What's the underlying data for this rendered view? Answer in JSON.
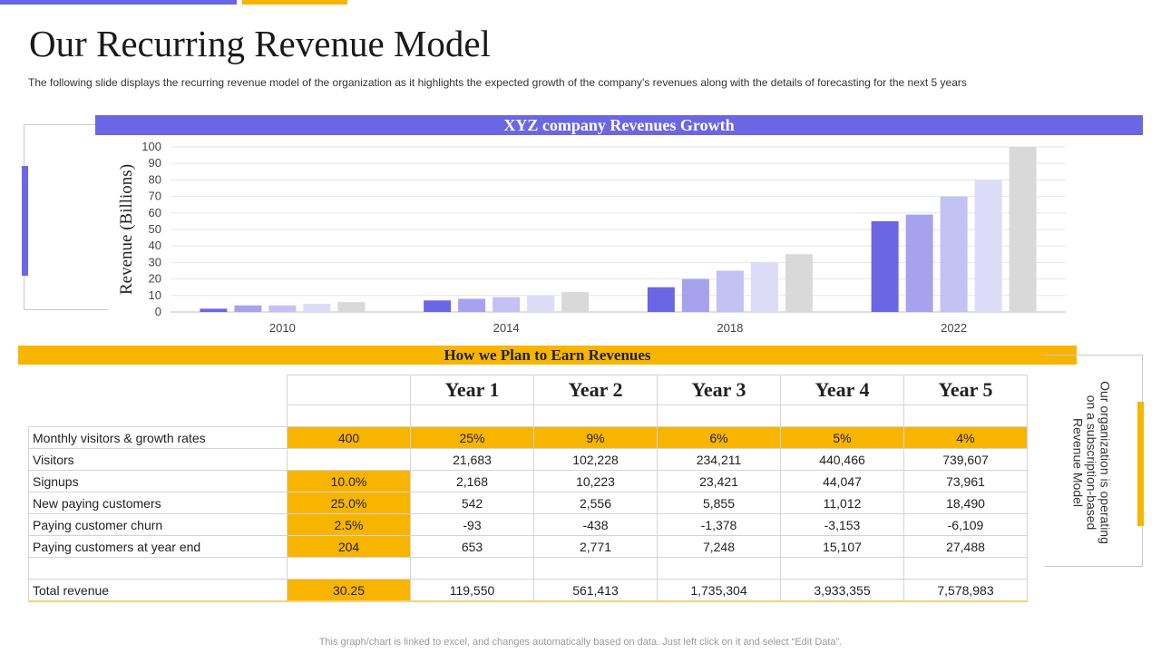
{
  "page": {
    "title": "Our Recurring Revenue Model",
    "subtitle": "The following  slide displays the recurring  revenue  model of the organization as it highlights the expected growth  of the company's revenues  along with the details of forecasting for the next 5 years",
    "footer": "This graph/chart is linked to excel,  and changes automatically based on data. Just left click on it and select “Edit Data”.",
    "side_note": "Our organization is operating on a subscription-based Revenue Model",
    "colors": {
      "accent_purple": "#6b66e4",
      "accent_gold": "#f7b500"
    }
  },
  "chart_data": {
    "type": "bar",
    "title": "XYZ company Revenues Growth",
    "xlabel": "",
    "ylabel": "Revenue (Billions)",
    "ylim": [
      0,
      100
    ],
    "yticks": [
      0,
      10,
      20,
      30,
      40,
      50,
      60,
      70,
      80,
      90,
      100
    ],
    "grid": true,
    "legend": "none",
    "categories": [
      "2010",
      "2014",
      "2018",
      "2022"
    ],
    "series": [
      {
        "color": "#6b66e4",
        "values": [
          2,
          7,
          15,
          55
        ]
      },
      {
        "color": "#a6a2ee",
        "values": [
          4,
          8,
          20,
          59
        ]
      },
      {
        "color": "#c4c1f4",
        "values": [
          4,
          9,
          25,
          70
        ]
      },
      {
        "color": "#dcdcf9",
        "values": [
          5,
          10,
          30,
          80
        ]
      },
      {
        "color": "#d9d9d9",
        "values": [
          6,
          12,
          35,
          100
        ]
      }
    ]
  },
  "plan": {
    "title": "How we Plan to Earn Revenues",
    "headers": [
      "Year 1",
      "Year 2",
      "Year 3",
      "Year 4",
      "Year 5"
    ],
    "rows": [
      {
        "label": "Monthly visitors & growth rates",
        "base": "400",
        "years": [
          "25%",
          "9%",
          "6%",
          "5%",
          "4%"
        ]
      },
      {
        "label": "Visitors",
        "base": "",
        "years": [
          "21,683",
          "102,228",
          "234,211",
          "440,466",
          "739,607"
        ]
      },
      {
        "label": "Signups",
        "base": "10.0%",
        "years": [
          "2,168",
          "10,223",
          "23,421",
          "44,047",
          "73,961"
        ]
      },
      {
        "label": "New paying customers",
        "base": "25.0%",
        "years": [
          "542",
          "2,556",
          "5,855",
          "11,012",
          "18,490"
        ]
      },
      {
        "label": "Paying customer churn",
        "base": "2.5%",
        "years": [
          "-93",
          "-438",
          "-1,378",
          "-3,153",
          "-6,109"
        ]
      },
      {
        "label": "Paying customers at year end",
        "base": "204",
        "years": [
          "653",
          "2,771",
          "7,248",
          "15,107",
          "27,488"
        ]
      }
    ],
    "total": {
      "label": "Total revenue",
      "base": "30.25",
      "years": [
        "119,550",
        "561,413",
        "1,735,304",
        "3,933,355",
        "7,578,983"
      ]
    }
  }
}
